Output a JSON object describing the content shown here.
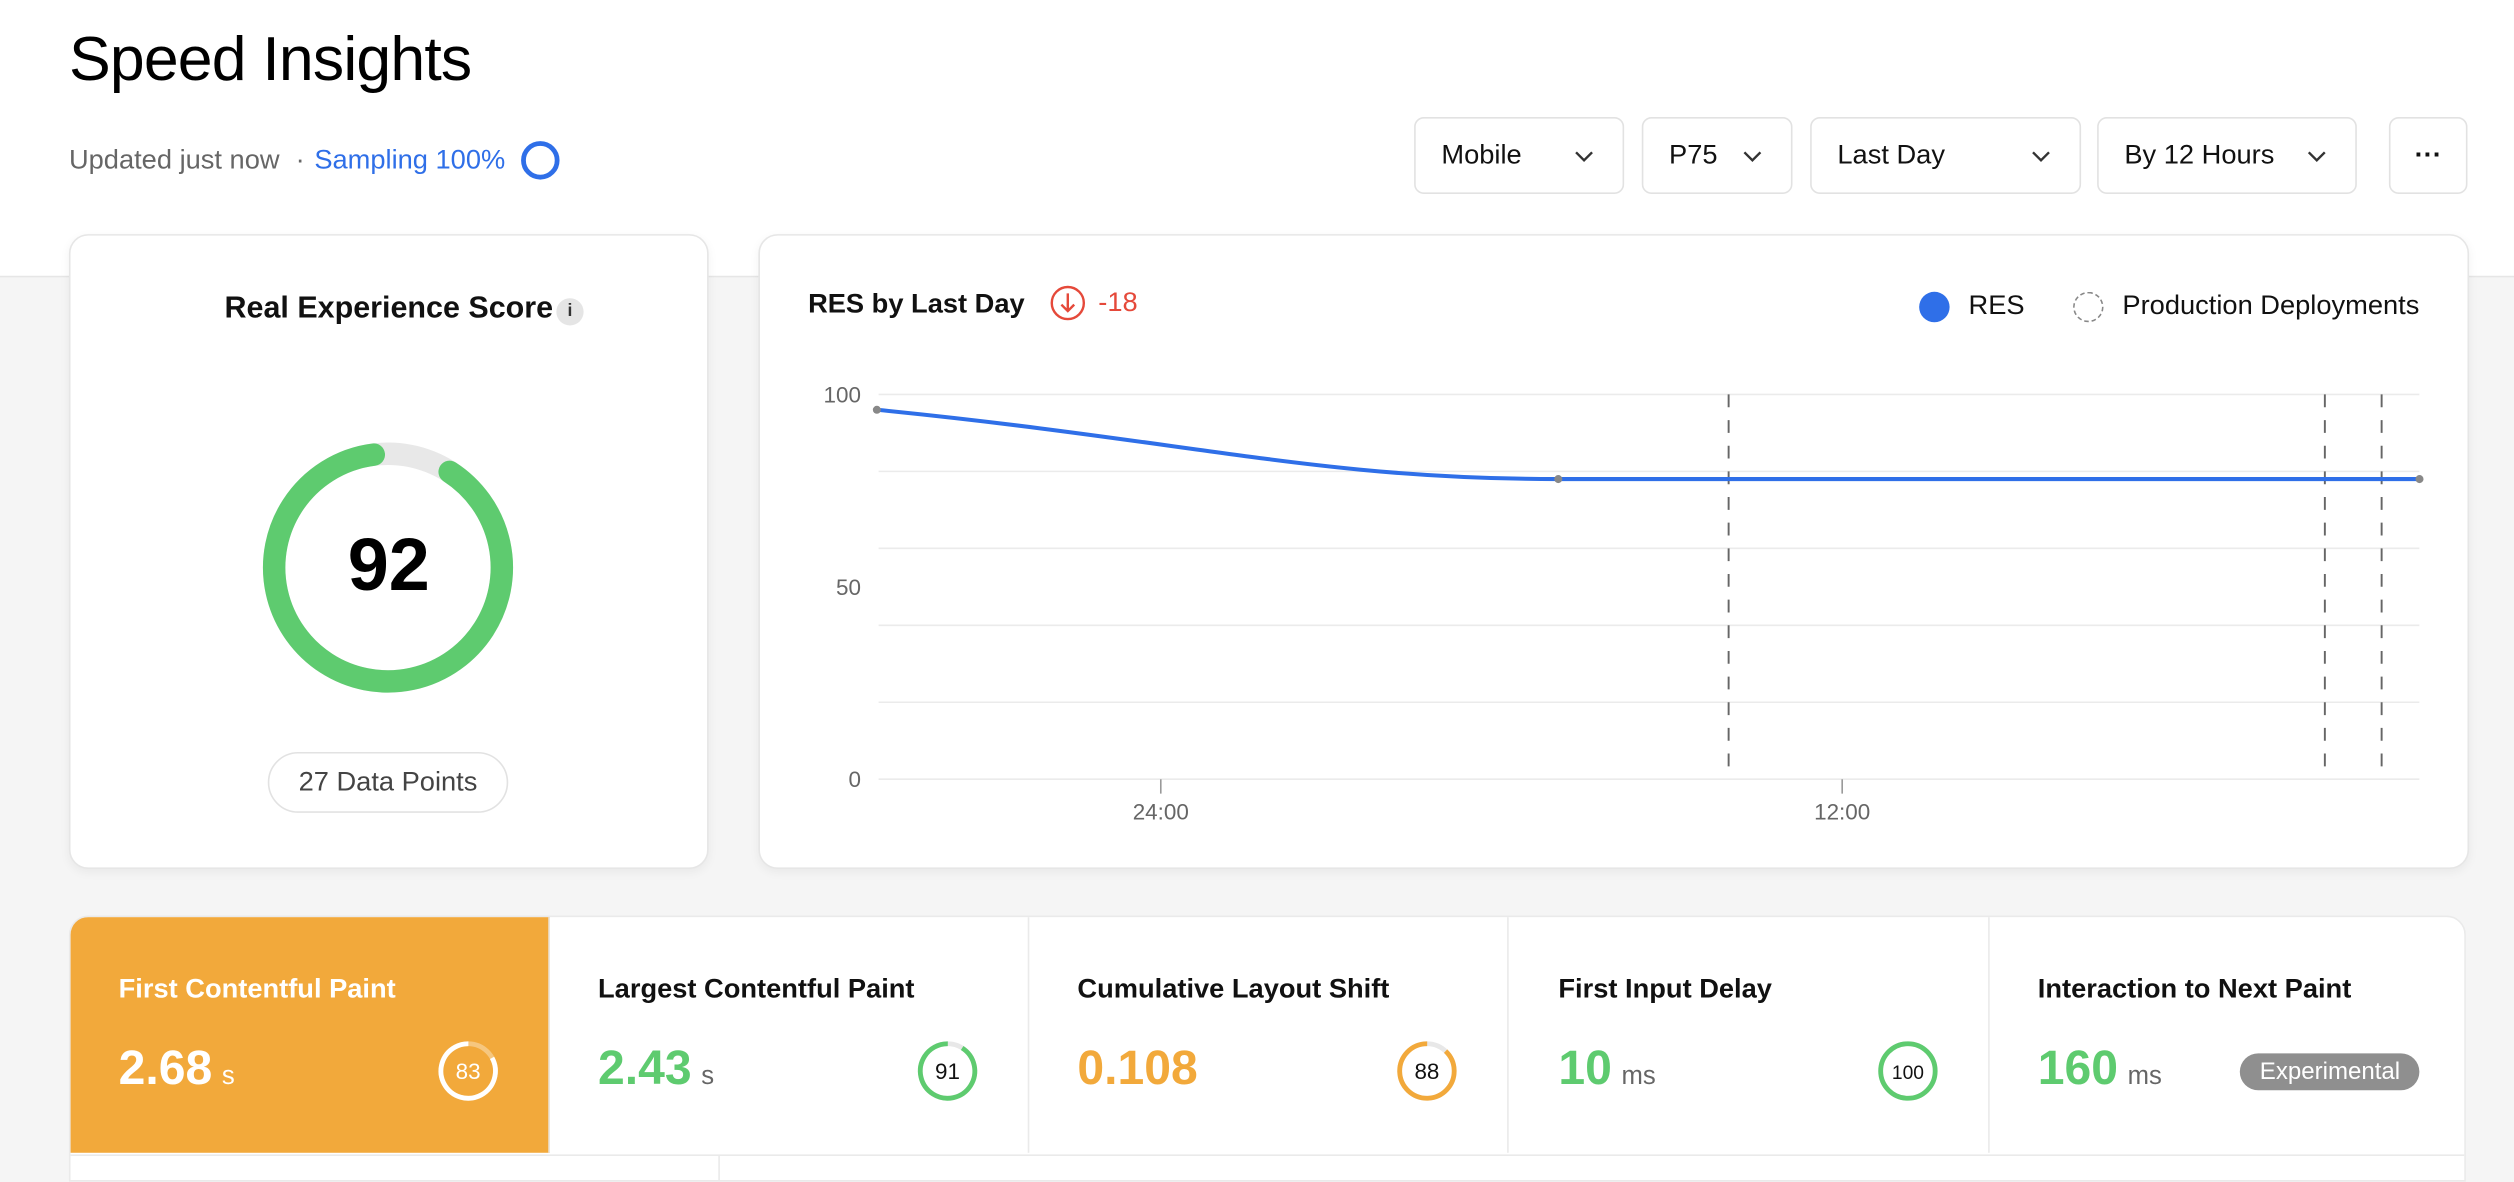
{
  "header": {
    "title": "Speed Insights",
    "updated": "Updated just now",
    "separator": "·",
    "sampling": "Sampling 100%",
    "filters": {
      "device": "Mobile",
      "percentile": "P75",
      "range": "Last Day",
      "granularity": "By 12 Hours",
      "more": "···"
    }
  },
  "score_card": {
    "title": "Real Experience Score",
    "info": "i",
    "score": "92",
    "score_value": 92,
    "data_points": "27 Data Points",
    "color": "#5ecb6f"
  },
  "chart_data": {
    "type": "line",
    "title": "RES by Last Day",
    "delta": "-18",
    "legend": [
      "RES",
      "Production Deployments"
    ],
    "legend_placement": "top-right",
    "series": [
      {
        "name": "RES",
        "color": "#2f6fe8",
        "points": [
          {
            "x": "19:00",
            "y": 96
          },
          {
            "x": "07:00",
            "y": 78
          },
          {
            "x": "22:10",
            "y": 78
          }
        ]
      }
    ],
    "deployments": [
      "10:00",
      "20:30",
      "21:30"
    ],
    "x_ticks": [
      "24:00",
      "12:00"
    ],
    "y_ticks": [
      "100",
      "50",
      "0"
    ],
    "ylim": [
      0,
      100
    ],
    "grid": true
  },
  "metrics": [
    {
      "name": "First Contentful Paint",
      "value": "2.68",
      "unit": "s",
      "score": "83",
      "score_value": 83,
      "status": "needs-improvement"
    },
    {
      "name": "Largest Contentful Paint",
      "value": "2.43",
      "unit": "s",
      "score": "91",
      "score_value": 91,
      "status": "good"
    },
    {
      "name": "Cumulative Layout Shift",
      "value": "0.108",
      "unit": "",
      "score": "88",
      "score_value": 88,
      "status": "needs-improvement"
    },
    {
      "name": "First Input Delay",
      "value": "10",
      "unit": "ms",
      "score": "100",
      "score_value": 100,
      "status": "good"
    },
    {
      "name": "Interaction to Next Paint",
      "value": "160",
      "unit": "ms",
      "badge": "Experimental",
      "status": "good"
    }
  ],
  "colors": {
    "good": "#5ecb6f",
    "warn": "#f2a93b",
    "accent": "#2f6fe8",
    "negative": "#e5493a"
  }
}
